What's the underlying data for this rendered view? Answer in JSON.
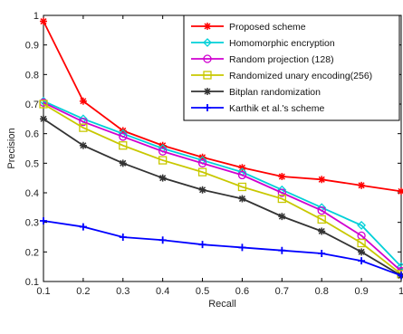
{
  "chart_data": {
    "type": "line",
    "title": "",
    "xlabel": "Recall",
    "ylabel": "Precision",
    "xlim": [
      0.1,
      1.0
    ],
    "ylim": [
      0.1,
      1.0
    ],
    "xticks": [
      0.1,
      0.2,
      0.3,
      0.4,
      0.5,
      0.6,
      0.7,
      0.8,
      0.9,
      1.0
    ],
    "yticks": [
      0.1,
      0.2,
      0.3,
      0.4,
      0.5,
      0.6,
      0.7,
      0.8,
      0.9,
      1.0
    ],
    "xtick_labels": [
      "0.1",
      "0.2",
      "0.3",
      "0.4",
      "0.5",
      "0.6",
      "0.7",
      "0.8",
      "0.9",
      "1"
    ],
    "ytick_labels": [
      "0.1",
      "0.2",
      "0.3",
      "0.4",
      "0.5",
      "0.6",
      "0.7",
      "0.8",
      "0.9",
      "1"
    ],
    "grid": false,
    "legend_position": "top-right",
    "x": [
      0.1,
      0.2,
      0.3,
      0.4,
      0.5,
      0.6,
      0.7,
      0.8,
      0.9,
      1.0
    ],
    "series": [
      {
        "name": "Proposed scheme",
        "color": "#ff0000",
        "marker": "star",
        "values": [
          0.98,
          0.71,
          0.61,
          0.56,
          0.52,
          0.485,
          0.455,
          0.445,
          0.425,
          0.405
        ]
      },
      {
        "name": "Homomorphic encryption",
        "color": "#00d0d8",
        "marker": "diamond",
        "values": [
          0.71,
          0.65,
          0.6,
          0.55,
          0.51,
          0.47,
          0.41,
          0.35,
          0.29,
          0.15
        ]
      },
      {
        "name": "Random projection (128)",
        "color": "#d000d0",
        "marker": "circle",
        "values": [
          0.705,
          0.64,
          0.59,
          0.54,
          0.5,
          0.46,
          0.4,
          0.34,
          0.255,
          0.135
        ]
      },
      {
        "name": "Randomized unary encoding(256)",
        "color": "#c8c800",
        "marker": "square",
        "values": [
          0.7,
          0.62,
          0.56,
          0.51,
          0.47,
          0.42,
          0.38,
          0.31,
          0.23,
          0.125
        ]
      },
      {
        "name": "Bitplan randomization",
        "color": "#333333",
        "marker": "star",
        "values": [
          0.65,
          0.56,
          0.5,
          0.45,
          0.41,
          0.38,
          0.32,
          0.27,
          0.2,
          0.12
        ]
      },
      {
        "name": "Karthik et al.'s scheme",
        "color": "#0000ff",
        "marker": "plus",
        "values": [
          0.305,
          0.285,
          0.25,
          0.24,
          0.225,
          0.215,
          0.205,
          0.195,
          0.17,
          0.12
        ]
      }
    ]
  }
}
